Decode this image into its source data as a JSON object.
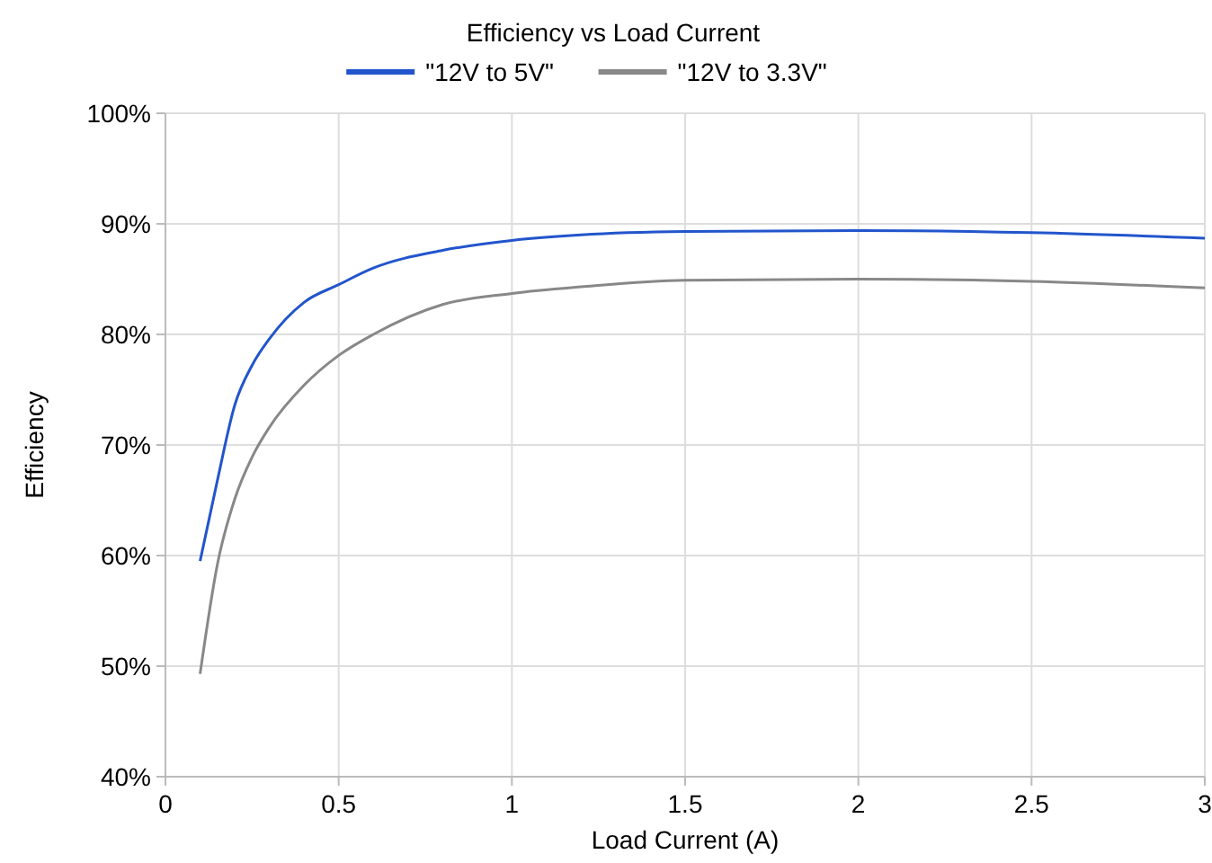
{
  "chart_data": {
    "type": "line",
    "title": "Efficiency vs Load Current",
    "xlabel": "Load Current (A)",
    "ylabel": "Efficiency",
    "x": [
      0.1,
      0.15,
      0.2,
      0.25,
      0.3,
      0.4,
      0.5,
      0.6,
      0.8,
      1,
      1.2,
      1.5,
      2,
      2.5,
      3
    ],
    "series": [
      {
        "name": "\"12V to 5V\"",
        "color": "#2255cc",
        "values": [
          59.5,
          66.8,
          73.6,
          77.2,
          79.6,
          82.9,
          84.5,
          86,
          87.6,
          88.5,
          89,
          89.3,
          89.4,
          89.2,
          88.7
        ]
      },
      {
        "name": "\"12V to 3.3V\"",
        "color": "#888888",
        "values": [
          49.3,
          59.2,
          65.1,
          68.9,
          71.6,
          75.4,
          78.1,
          80,
          82.7,
          83.7,
          84.3,
          84.9,
          85,
          84.8,
          84.2
        ]
      }
    ],
    "xlim": [
      0,
      3
    ],
    "xticks": [
      0,
      0.5,
      1,
      1.5,
      2,
      2.5,
      3
    ],
    "ylim": [
      40,
      100
    ],
    "yticks": [
      {
        "value": 40,
        "label": "40%"
      },
      {
        "value": 50,
        "label": "50%"
      },
      {
        "value": 60,
        "label": "60%"
      },
      {
        "value": 70,
        "label": "70%"
      },
      {
        "value": 80,
        "label": "80%"
      },
      {
        "value": 90,
        "label": "90%"
      },
      {
        "value": 100,
        "label": "100%"
      }
    ],
    "grid": true,
    "legend": "top",
    "marker": "none",
    "line_style": "solid"
  }
}
